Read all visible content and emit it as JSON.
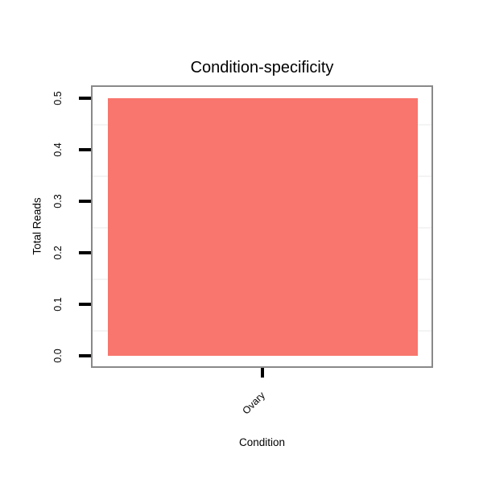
{
  "chart_data": {
    "type": "bar",
    "title": "Condition-specificity",
    "categories": [
      "Ovary"
    ],
    "values": [
      0.5
    ],
    "xlabel": "Condition",
    "ylabel": "Total Reads",
    "ylim": [
      0,
      0.5
    ],
    "ytick_values": [
      0.0,
      0.1,
      0.2,
      0.3,
      0.4,
      0.5
    ],
    "ytick_labels": [
      "0.0",
      "0.1",
      "0.2",
      "0.3",
      "0.4",
      "0.5"
    ],
    "bar_color": "#F8766D",
    "panel_border_color": "#898989",
    "tick_color": "#000000",
    "minor_grid_color": "#f4f4f4",
    "grid": "minor horizontal gridlines only (at 0.05 intervals), majors white/invisible",
    "legend": "none"
  }
}
